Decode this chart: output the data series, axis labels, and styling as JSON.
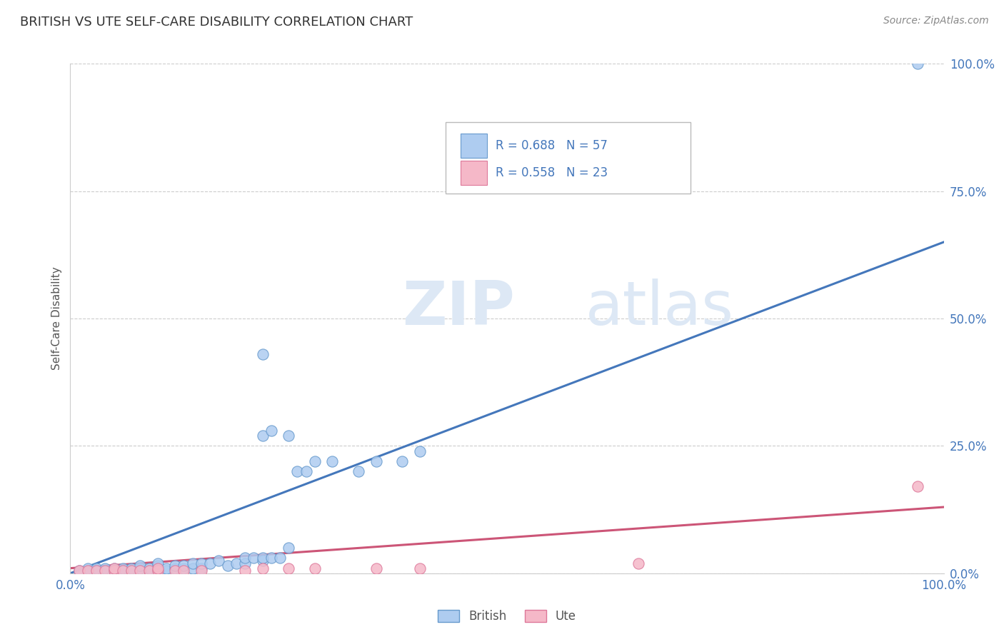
{
  "title": "BRITISH VS UTE SELF-CARE DISABILITY CORRELATION CHART",
  "source_text": "Source: ZipAtlas.com",
  "ylabel": "Self-Care Disability",
  "xlim": [
    0,
    1
  ],
  "ylim": [
    0,
    1
  ],
  "xtick_labels": [
    "0.0%",
    "100.0%"
  ],
  "ytick_labels_right": [
    "0.0%",
    "25.0%",
    "50.0%",
    "75.0%",
    "100.0%"
  ],
  "ytick_positions_right": [
    0.0,
    0.25,
    0.5,
    0.75,
    1.0
  ],
  "grid_color": "#cccccc",
  "background_color": "#ffffff",
  "british_color": "#aeccf0",
  "british_edge_color": "#6699cc",
  "british_line_color": "#4477bb",
  "ute_color": "#f5b8c8",
  "ute_edge_color": "#dd7799",
  "ute_line_color": "#cc5577",
  "title_color": "#333333",
  "stat_color": "#4477bb",
  "watermark_color": "#dde8f5",
  "british_R": 0.688,
  "british_N": 57,
  "ute_R": 0.558,
  "ute_N": 23,
  "british_line_x0": 0.0,
  "british_line_y0": 0.0,
  "british_line_x1": 1.0,
  "british_line_y1": 0.65,
  "ute_line_x0": 0.0,
  "ute_line_y0": 0.01,
  "ute_line_x1": 1.0,
  "ute_line_y1": 0.13,
  "british_points_x": [
    0.01,
    0.02,
    0.02,
    0.03,
    0.03,
    0.04,
    0.04,
    0.05,
    0.05,
    0.06,
    0.06,
    0.07,
    0.07,
    0.08,
    0.08,
    0.08,
    0.09,
    0.09,
    0.1,
    0.1,
    0.1,
    0.1,
    0.11,
    0.11,
    0.12,
    0.12,
    0.13,
    0.13,
    0.14,
    0.14,
    0.15,
    0.15,
    0.16,
    0.17,
    0.18,
    0.19,
    0.2,
    0.2,
    0.21,
    0.22,
    0.22,
    0.22,
    0.23,
    0.23,
    0.24,
    0.25,
    0.25,
    0.26,
    0.27,
    0.28,
    0.3,
    0.33,
    0.35,
    0.38,
    0.4,
    0.97,
    0.22
  ],
  "british_points_y": [
    0.005,
    0.005,
    0.01,
    0.005,
    0.01,
    0.005,
    0.01,
    0.005,
    0.01,
    0.005,
    0.01,
    0.005,
    0.01,
    0.005,
    0.01,
    0.015,
    0.005,
    0.01,
    0.005,
    0.01,
    0.015,
    0.02,
    0.005,
    0.01,
    0.01,
    0.015,
    0.01,
    0.015,
    0.01,
    0.02,
    0.01,
    0.02,
    0.02,
    0.025,
    0.015,
    0.02,
    0.02,
    0.03,
    0.03,
    0.025,
    0.03,
    0.27,
    0.03,
    0.28,
    0.03,
    0.05,
    0.27,
    0.2,
    0.2,
    0.22,
    0.22,
    0.2,
    0.22,
    0.22,
    0.24,
    1.0,
    0.43
  ],
  "ute_points_x": [
    0.01,
    0.02,
    0.03,
    0.04,
    0.05,
    0.05,
    0.06,
    0.07,
    0.08,
    0.09,
    0.1,
    0.1,
    0.12,
    0.13,
    0.15,
    0.2,
    0.22,
    0.25,
    0.28,
    0.35,
    0.4,
    0.65,
    0.97
  ],
  "ute_points_y": [
    0.005,
    0.005,
    0.005,
    0.005,
    0.005,
    0.01,
    0.005,
    0.005,
    0.005,
    0.005,
    0.005,
    0.01,
    0.005,
    0.005,
    0.005,
    0.005,
    0.01,
    0.01,
    0.01,
    0.01,
    0.01,
    0.02,
    0.17
  ]
}
